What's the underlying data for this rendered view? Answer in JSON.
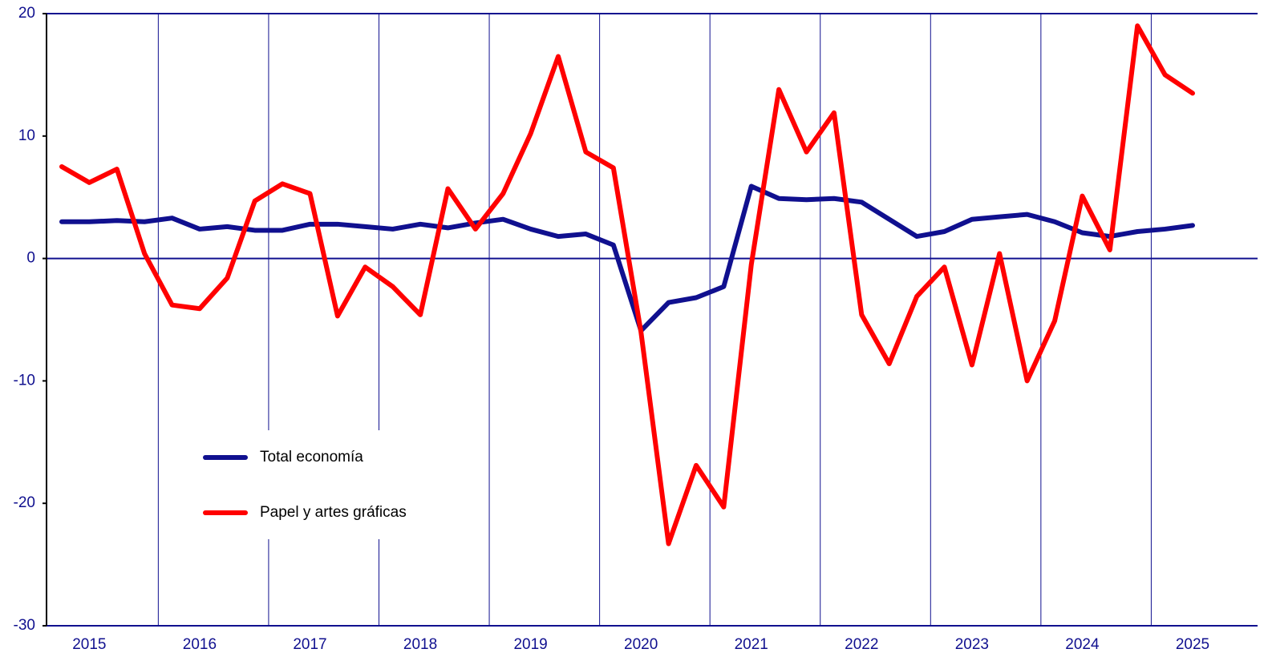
{
  "chart_data": {
    "type": "line",
    "categories": [
      null,
      "2015",
      null,
      null,
      null,
      "2016",
      null,
      null,
      null,
      "2017",
      null,
      null,
      null,
      "2018",
      null,
      null,
      null,
      "2019",
      null,
      null,
      null,
      "2020",
      null,
      null,
      null,
      "2021",
      null,
      null,
      null,
      "2022",
      null,
      null,
      null,
      "2023",
      null,
      null,
      null,
      "2024",
      null,
      null,
      null,
      "2025"
    ],
    "series": [
      {
        "name": "Total economía",
        "color": "#10108f",
        "values": [
          3.0,
          3.0,
          3.1,
          3.0,
          3.3,
          2.4,
          2.6,
          2.3,
          2.3,
          2.8,
          2.8,
          2.6,
          2.4,
          2.8,
          2.5,
          2.9,
          3.2,
          2.4,
          1.8,
          2.0,
          1.1,
          -5.9,
          -3.6,
          -3.2,
          -2.3,
          5.9,
          4.9,
          4.8,
          4.9,
          4.6,
          3.2,
          1.8,
          2.2,
          3.2,
          3.4,
          3.6,
          3.0,
          2.1,
          1.8,
          2.2,
          2.4,
          2.7
        ]
      },
      {
        "name": "Papel y artes gráficas",
        "color": "#ff0000",
        "values": [
          7.5,
          6.2,
          7.3,
          0.4,
          -3.8,
          -4.1,
          -1.6,
          4.7,
          6.1,
          5.3,
          -4.7,
          -0.7,
          -2.3,
          -4.6,
          5.7,
          2.4,
          5.3,
          10.2,
          16.5,
          8.7,
          7.4,
          -6.0,
          -23.3,
          -16.9,
          -20.3,
          -0.5,
          13.8,
          8.7,
          11.9,
          -4.6,
          -8.6,
          -3.1,
          -0.7,
          -8.7,
          0.4,
          -10.0,
          -5.1,
          5.1,
          0.7,
          19.0,
          15.0,
          13.5
        ]
      }
    ],
    "ylim": [
      -30,
      20
    ],
    "yticks": [
      -30,
      -20,
      -10,
      0,
      10,
      20
    ],
    "legend": "lower-left"
  }
}
